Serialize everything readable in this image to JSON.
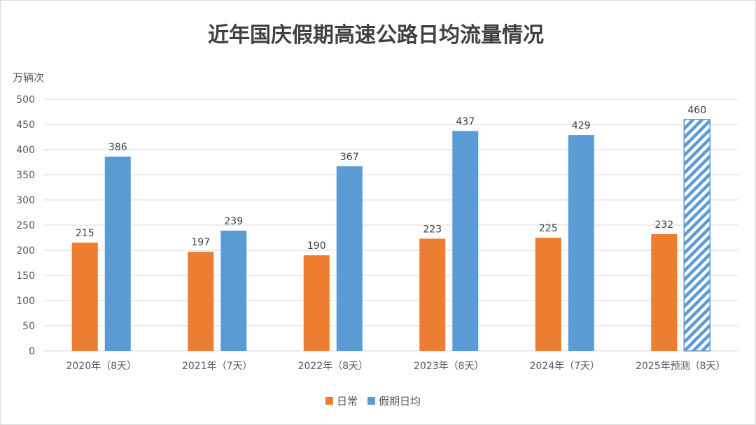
{
  "chart_data": {
    "type": "bar",
    "title": "近年国庆假期高速公路日均流量情况",
    "ylabel": "万辆次",
    "xlabel": "",
    "ylim": [
      0,
      500
    ],
    "yticks": [
      0,
      50,
      100,
      150,
      200,
      250,
      300,
      350,
      400,
      450,
      500
    ],
    "grid": true,
    "legend_position": "bottom",
    "categories": [
      "2020年（8天）",
      "2021年（7天）",
      "2022年（8天）",
      "2023年（8天）",
      "2024年（7天）",
      "2025年预测（8天）"
    ],
    "series": [
      {
        "name": "日常",
        "color": "#ED7D31",
        "values": [
          215,
          197,
          190,
          223,
          225,
          232
        ]
      },
      {
        "name": "假期日均",
        "color": "#5B9BD5",
        "values": [
          386,
          239,
          367,
          437,
          429,
          460
        ],
        "hatched_categories": [
          "2025年预测（8天）"
        ]
      }
    ]
  }
}
